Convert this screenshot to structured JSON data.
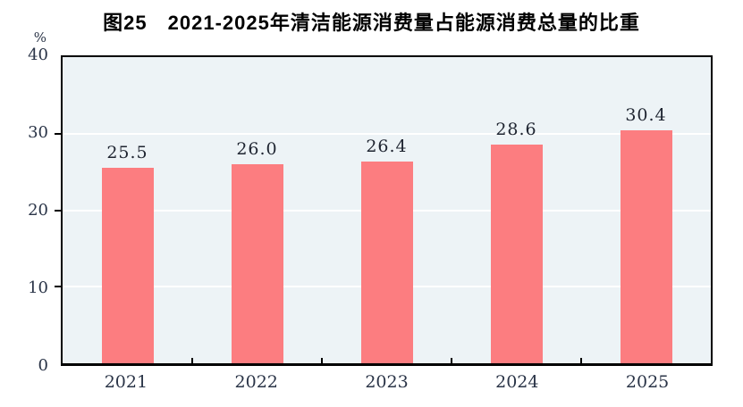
{
  "title": "图25　2021-2025年清洁能源消费量占能源消费总量的比重",
  "chart_data": {
    "type": "bar",
    "title": "图25　2021-2025年清洁能源消费量占能源消费总量的比重",
    "categories": [
      "2021",
      "2022",
      "2023",
      "2024",
      "2025"
    ],
    "values": [
      25.5,
      26.0,
      26.4,
      28.6,
      30.4
    ],
    "value_labels": [
      "25.5",
      "26.0",
      "26.4",
      "28.6",
      "30.4"
    ],
    "xlabel": "",
    "ylabel": "%",
    "ylim": [
      0,
      40
    ],
    "yticks": [
      "40",
      "30",
      "20",
      "10",
      "0"
    ],
    "grid": true,
    "gridlines_at": [
      10,
      20,
      30
    ],
    "legend": "none",
    "colors": {
      "bar": "#FC7D80",
      "plot_background": "#EDF3F6",
      "gridline": "#FFFFFF",
      "axis": "#000000",
      "tick_label": "#2A3447",
      "title": "#000000"
    }
  }
}
